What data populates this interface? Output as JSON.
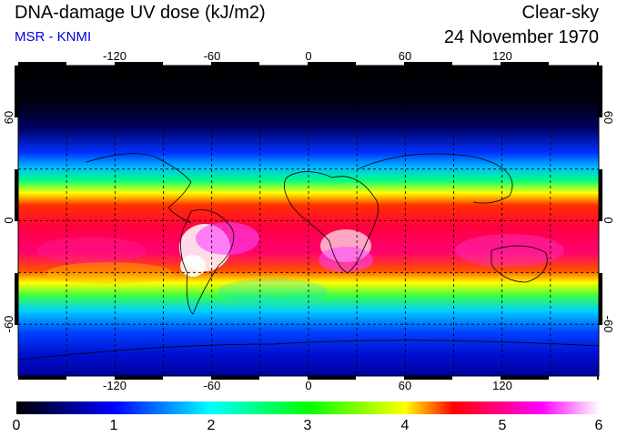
{
  "header": {
    "title": "DNA-damage UV dose (kJ/m2)",
    "source": "MSR - KNMI",
    "condition": "Clear-sky",
    "date": "24 November 1970"
  },
  "map": {
    "lon_ticks": [
      "-120",
      "-60",
      "0",
      "60",
      "120"
    ],
    "lat_ticks": [
      "60",
      "0",
      "-60"
    ],
    "lon_grid": [
      -150,
      -120,
      -90,
      -60,
      -30,
      0,
      30,
      60,
      90,
      120,
      150
    ],
    "lat_grid": [
      -60,
      -30,
      0,
      30,
      60
    ],
    "lon_range": [
      -180,
      180
    ],
    "lat_range": [
      -90,
      90
    ],
    "grid": "dashed"
  },
  "colorbar": {
    "ticks": [
      "0",
      "1",
      "2",
      "3",
      "4",
      "5",
      "6"
    ],
    "range": [
      0,
      6
    ],
    "colors": [
      "#000000",
      "#0000ff",
      "#00ffff",
      "#00ff00",
      "#ffff00",
      "#ff0000",
      "#ff00ff",
      "#ffffff"
    ]
  }
}
